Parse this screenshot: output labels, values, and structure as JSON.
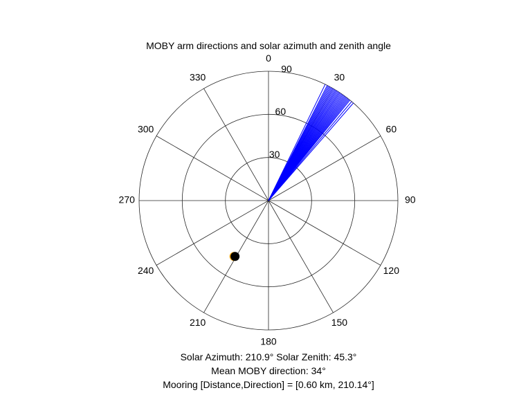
{
  "chart_data": {
    "type": "polar",
    "title": "MOBY arm directions and solar azimuth and zenith angle",
    "theta_ticks": [
      "0",
      "30",
      "60",
      "90",
      "120",
      "150",
      "180",
      "210",
      "240",
      "270",
      "300",
      "330"
    ],
    "radial_ticks": [
      "30",
      "60",
      "90"
    ],
    "rmax": 90,
    "theta_zero_location": "top",
    "theta_direction": "clockwise",
    "grid": true,
    "series": [
      {
        "kind": "arm_directions",
        "color": "#0000ff",
        "radius": 90,
        "directions_deg": [
          26,
          27,
          27.5,
          28,
          28.5,
          29,
          29.5,
          30,
          30.5,
          31,
          31.5,
          32,
          32.5,
          33,
          33.5,
          34,
          34.5,
          35,
          35.5,
          36,
          36.5,
          37,
          37.5,
          38,
          38.5,
          39,
          40,
          41
        ]
      },
      {
        "kind": "solar_position",
        "color": "#000000",
        "edge_color": "#f0a000",
        "azimuth_deg": 210.9,
        "zenith_deg": 45.3
      }
    ]
  },
  "info": {
    "line1": "Solar Azimuth: 210.9°    Solar Zenith: 45.3°",
    "line2": "Mean MOBY direction: 34°",
    "line3": "Mooring [Distance,Direction] = [0.60 km, 210.14°]"
  }
}
